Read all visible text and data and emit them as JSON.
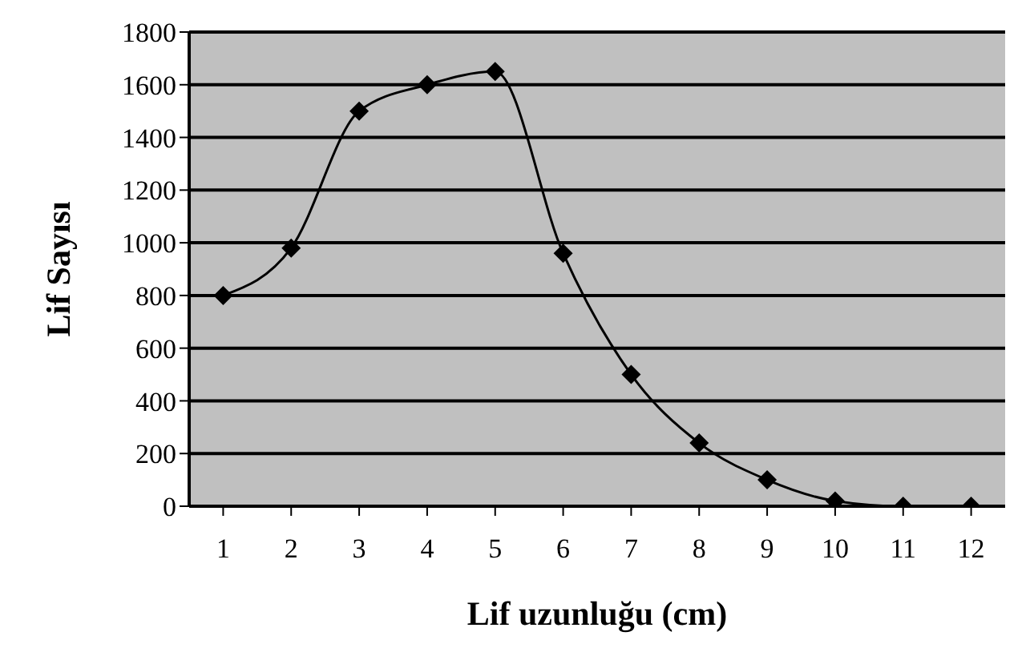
{
  "chart_data": {
    "type": "line",
    "xlabel": "Lif uzunluğu (cm)",
    "ylabel": "Lif Sayısı",
    "x": [
      1,
      2,
      3,
      4,
      5,
      6,
      7,
      8,
      9,
      10,
      11,
      12
    ],
    "series": [
      {
        "color": "#000000",
        "values": [
          800,
          980,
          1500,
          1600,
          1650,
          960,
          500,
          240,
          100,
          20,
          0,
          0
        ]
      }
    ],
    "xlim": [
      0.5,
      12.5
    ],
    "xticks": [
      1,
      2,
      3,
      4,
      5,
      6,
      7,
      8,
      9,
      10,
      11,
      12
    ],
    "ylim": [
      0,
      1800
    ],
    "yticks": [
      0,
      200,
      400,
      600,
      800,
      1000,
      1200,
      1400,
      1600,
      1800
    ],
    "grid": "y",
    "marker": "diamond",
    "line_style": "solid",
    "legend": false
  }
}
